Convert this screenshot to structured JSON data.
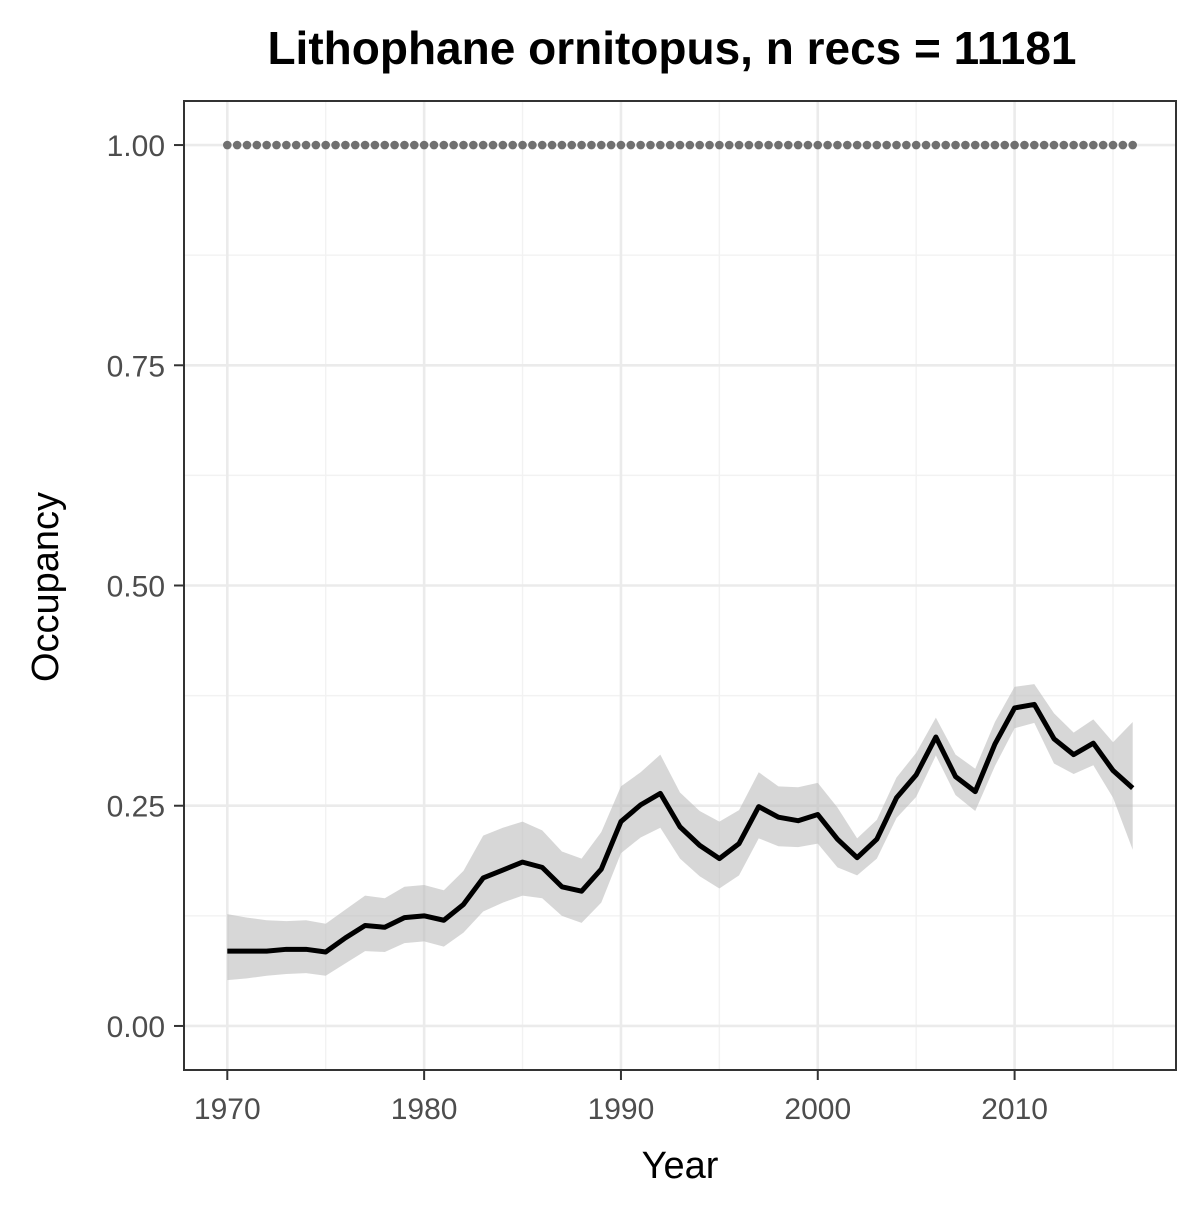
{
  "chart_data": {
    "type": "line",
    "title": "Lithophane ornitopus, n recs = 11181",
    "xlabel": "Year",
    "ylabel": "Occupancy",
    "xlim": [
      1967.8,
      2018.2
    ],
    "ylim": [
      -0.05,
      1.05
    ],
    "x_ticks": [
      1970,
      1980,
      1990,
      2000,
      2010
    ],
    "x_tick_labels": [
      "1970",
      "1980",
      "1990",
      "2000",
      "2010"
    ],
    "y_ticks": [
      0,
      0.25,
      0.5,
      0.75,
      1.0
    ],
    "y_tick_labels": [
      "0.00",
      "0.25",
      "0.50",
      "0.75",
      "1.00"
    ],
    "x_minor_ticks": [
      1975,
      1985,
      1995,
      2005,
      2015
    ],
    "y_minor_ticks": [
      0.125,
      0.375,
      0.625,
      0.875
    ],
    "grid": true,
    "legend": "none",
    "series": [
      {
        "role": "reference",
        "style": "dotted",
        "color": "#707070",
        "x": [
          1970,
          1971,
          1972,
          1973,
          1974,
          1975,
          1976,
          1977,
          1978,
          1979,
          1980,
          1981,
          1982,
          1983,
          1984,
          1985,
          1986,
          1987,
          1988,
          1989,
          1990,
          1991,
          1992,
          1993,
          1994,
          1995,
          1996,
          1997,
          1998,
          1999,
          2000,
          2001,
          2002,
          2003,
          2004,
          2005,
          2006,
          2007,
          2008,
          2009,
          2010,
          2011,
          2012,
          2013,
          2014,
          2015,
          2016
        ],
        "y": [
          1,
          1,
          1,
          1,
          1,
          1,
          1,
          1,
          1,
          1,
          1,
          1,
          1,
          1,
          1,
          1,
          1,
          1,
          1,
          1,
          1,
          1,
          1,
          1,
          1,
          1,
          1,
          1,
          1,
          1,
          1,
          1,
          1,
          1,
          1,
          1,
          1,
          1,
          1,
          1,
          1,
          1,
          1,
          1,
          1,
          1,
          1
        ]
      },
      {
        "role": "mean",
        "style": "solid",
        "color": "#000000",
        "band_color": "#bebebe",
        "x": [
          1970,
          1971,
          1972,
          1973,
          1974,
          1975,
          1976,
          1977,
          1978,
          1979,
          1980,
          1981,
          1982,
          1983,
          1984,
          1985,
          1986,
          1987,
          1988,
          1989,
          1990,
          1991,
          1992,
          1993,
          1994,
          1995,
          1996,
          1997,
          1998,
          1999,
          2000,
          2001,
          2002,
          2003,
          2004,
          2005,
          2006,
          2007,
          2008,
          2009,
          2010,
          2011,
          2012,
          2013,
          2014,
          2015,
          2016
        ],
        "y": [
          0.085,
          0.085,
          0.085,
          0.087,
          0.087,
          0.084,
          0.1,
          0.114,
          0.112,
          0.123,
          0.125,
          0.12,
          0.138,
          0.168,
          0.177,
          0.186,
          0.18,
          0.158,
          0.153,
          0.178,
          0.232,
          0.251,
          0.264,
          0.226,
          0.205,
          0.19,
          0.207,
          0.249,
          0.237,
          0.233,
          0.24,
          0.212,
          0.191,
          0.212,
          0.259,
          0.285,
          0.328,
          0.283,
          0.266,
          0.32,
          0.361,
          0.365,
          0.326,
          0.308,
          0.321,
          0.29,
          0.27
        ],
        "lower": [
          0.052,
          0.054,
          0.057,
          0.059,
          0.06,
          0.057,
          0.071,
          0.085,
          0.084,
          0.094,
          0.096,
          0.09,
          0.106,
          0.13,
          0.14,
          0.148,
          0.145,
          0.125,
          0.117,
          0.14,
          0.196,
          0.214,
          0.225,
          0.19,
          0.17,
          0.156,
          0.171,
          0.213,
          0.204,
          0.203,
          0.207,
          0.18,
          0.171,
          0.19,
          0.236,
          0.26,
          0.307,
          0.262,
          0.244,
          0.295,
          0.338,
          0.344,
          0.298,
          0.286,
          0.296,
          0.259,
          0.2
        ],
        "upper": [
          0.127,
          0.123,
          0.12,
          0.119,
          0.12,
          0.116,
          0.132,
          0.148,
          0.145,
          0.158,
          0.16,
          0.154,
          0.176,
          0.216,
          0.225,
          0.232,
          0.222,
          0.198,
          0.19,
          0.22,
          0.272,
          0.288,
          0.308,
          0.265,
          0.244,
          0.232,
          0.245,
          0.288,
          0.272,
          0.271,
          0.276,
          0.248,
          0.213,
          0.234,
          0.282,
          0.31,
          0.35,
          0.308,
          0.292,
          0.345,
          0.385,
          0.388,
          0.355,
          0.333,
          0.348,
          0.322,
          0.345
        ]
      }
    ]
  }
}
